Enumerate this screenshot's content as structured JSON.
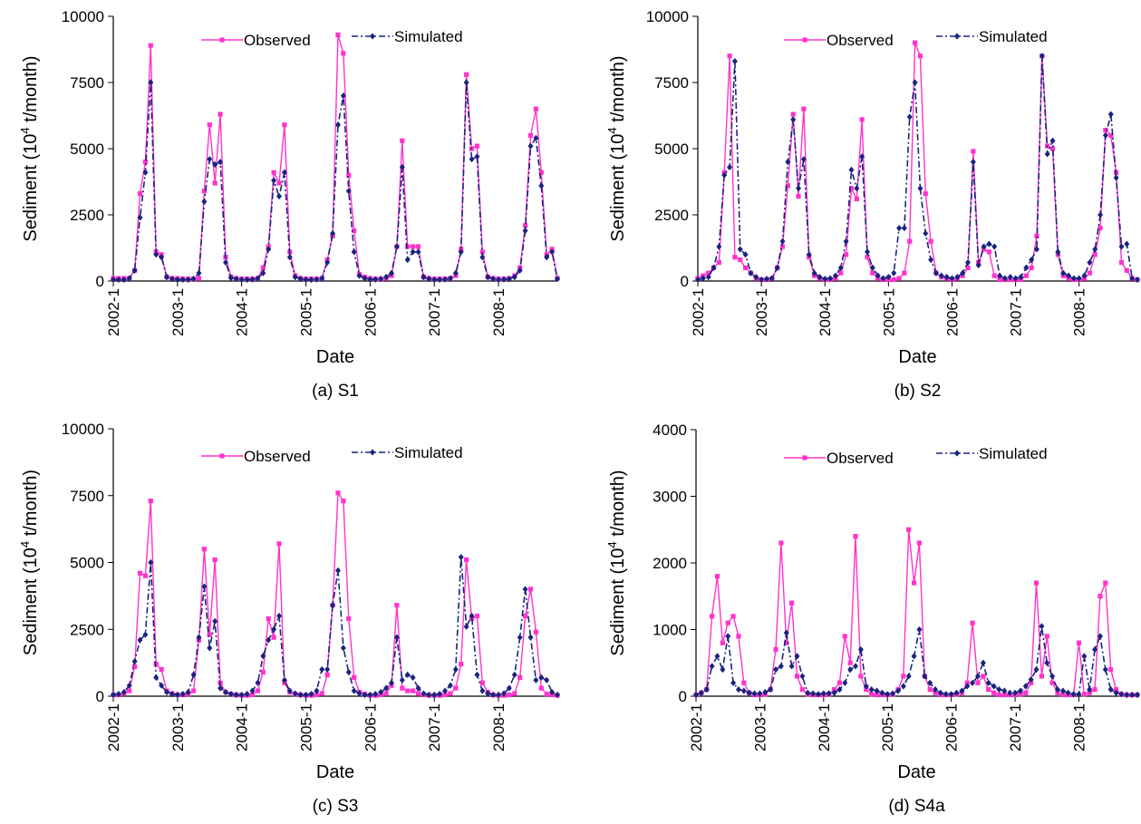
{
  "figure": {
    "x_axis_label": "Date",
    "y_axis_label_prefix": "Sediment (10",
    "y_axis_label_sup": "4",
    "y_axis_label_suffix": " t/month)"
  },
  "chart_data": [
    {
      "type": "line",
      "caption": "(a) S1",
      "xlabel": "Date",
      "ylabel": "Sediment (10^4 t/month)",
      "ylim": [
        0,
        10000
      ],
      "yticks": [
        0,
        2500,
        5000,
        7500,
        10000
      ],
      "xticks": [
        "2002-1",
        "2003-1",
        "2004-1",
        "2005-1",
        "2006-1",
        "2007-1",
        "2008-1"
      ],
      "x_start": "2002-01",
      "grid": false,
      "legend_position": "top-center",
      "series": [
        {
          "name": "Observed",
          "color": "#ff33cc",
          "marker": "square",
          "style": "solid",
          "values": [
            100,
            100,
            100,
            100,
            400,
            3300,
            4500,
            8900,
            1100,
            1000,
            150,
            100,
            100,
            80,
            80,
            80,
            100,
            3400,
            5900,
            3700,
            6300,
            900,
            150,
            100,
            80,
            80,
            80,
            100,
            500,
            1300,
            4100,
            3700,
            5900,
            1100,
            200,
            100,
            80,
            80,
            80,
            100,
            800,
            1700,
            9300,
            8600,
            4000,
            1900,
            250,
            150,
            100,
            80,
            80,
            100,
            200,
            1300,
            5300,
            1300,
            1300,
            1300,
            150,
            100,
            80,
            80,
            80,
            100,
            200,
            1200,
            7800,
            5000,
            5100,
            1100,
            150,
            100,
            80,
            80,
            100,
            200,
            500,
            2100,
            5500,
            6500,
            4100,
            1000,
            1200,
            100
          ]
        },
        {
          "name": "Simulated",
          "color": "#1a237e",
          "marker": "diamond",
          "style": "dashdot",
          "values": [
            50,
            50,
            50,
            100,
            400,
            2400,
            4100,
            7500,
            1000,
            900,
            150,
            80,
            50,
            50,
            50,
            80,
            300,
            3000,
            4600,
            4400,
            4500,
            700,
            120,
            80,
            50,
            50,
            60,
            100,
            300,
            1200,
            3800,
            3200,
            4100,
            900,
            150,
            80,
            50,
            50,
            60,
            100,
            700,
            1800,
            5900,
            7000,
            3400,
            1100,
            200,
            100,
            60,
            60,
            80,
            150,
            300,
            1300,
            4300,
            800,
            1100,
            1100,
            150,
            80,
            50,
            50,
            60,
            100,
            300,
            1100,
            7500,
            4600,
            4700,
            900,
            150,
            80,
            50,
            60,
            80,
            150,
            400,
            1900,
            5100,
            5400,
            3600,
            900,
            1100,
            80
          ]
        }
      ]
    },
    {
      "type": "line",
      "caption": "(b) S2",
      "xlabel": "Date",
      "ylabel": "Sediment (10^4 t/month)",
      "ylim": [
        0,
        10000
      ],
      "yticks": [
        0,
        2500,
        5000,
        7500,
        10000
      ],
      "xticks": [
        "2002-1",
        "2003-1",
        "2004-1",
        "2005-1",
        "2006-1",
        "2007-1",
        "2008-1"
      ],
      "x_start": "2002-01",
      "grid": false,
      "legend_position": "top-center",
      "series": [
        {
          "name": "Observed",
          "color": "#ff33cc",
          "marker": "square",
          "style": "solid",
          "values": [
            100,
            200,
            300,
            500,
            700,
            4100,
            8500,
            900,
            800,
            500,
            300,
            100,
            50,
            50,
            100,
            500,
            1300,
            3600,
            6300,
            3200,
            6500,
            900,
            200,
            100,
            50,
            50,
            100,
            300,
            1000,
            3500,
            3100,
            6100,
            900,
            300,
            100,
            50,
            50,
            50,
            100,
            300,
            1500,
            9000,
            8500,
            3300,
            1500,
            300,
            150,
            100,
            50,
            100,
            200,
            500,
            4900,
            700,
            1200,
            1100,
            200,
            50,
            50,
            50,
            50,
            50,
            200,
            500,
            1700,
            8500,
            5100,
            5000,
            1000,
            200,
            100,
            50,
            50,
            100,
            300,
            1000,
            2000,
            5700,
            5500,
            4100,
            700,
            400,
            100,
            50
          ]
        },
        {
          "name": "Simulated",
          "color": "#1a237e",
          "marker": "diamond",
          "style": "dashdot",
          "values": [
            50,
            100,
            150,
            500,
            1300,
            4000,
            4300,
            8300,
            1200,
            1000,
            300,
            150,
            50,
            80,
            100,
            500,
            1500,
            4500,
            6100,
            3500,
            4600,
            1000,
            300,
            150,
            80,
            100,
            200,
            500,
            1500,
            4200,
            3500,
            4700,
            1100,
            500,
            200,
            100,
            150,
            300,
            2000,
            2000,
            6200,
            7500,
            3500,
            1800,
            800,
            300,
            200,
            150,
            100,
            150,
            300,
            700,
            4500,
            600,
            1300,
            1400,
            1300,
            200,
            100,
            150,
            100,
            150,
            500,
            800,
            1200,
            8500,
            4800,
            5300,
            1100,
            300,
            200,
            100,
            100,
            200,
            700,
            1200,
            2500,
            5500,
            6300,
            3900,
            1300,
            1400,
            100,
            50
          ]
        }
      ]
    },
    {
      "type": "line",
      "caption": "(c) S3",
      "xlabel": "Date",
      "ylabel": "Sediment (10^4 t/month)",
      "ylim": [
        0,
        10000
      ],
      "yticks": [
        0,
        2500,
        5000,
        7500,
        10000
      ],
      "xticks": [
        "2002-1",
        "2003-1",
        "2004-1",
        "2005-1",
        "2006-1",
        "2007-1",
        "2008-1"
      ],
      "x_start": "2002-01",
      "grid": false,
      "legend_position": "top-center",
      "series": [
        {
          "name": "Observed",
          "color": "#ff33cc",
          "marker": "square",
          "style": "solid",
          "values": [
            50,
            50,
            100,
            200,
            1100,
            4600,
            4500,
            7300,
            1200,
            1000,
            200,
            100,
            50,
            50,
            80,
            200,
            2100,
            5500,
            2300,
            5100,
            500,
            150,
            80,
            50,
            30,
            30,
            50,
            200,
            900,
            2900,
            2200,
            5700,
            500,
            150,
            80,
            50,
            30,
            30,
            50,
            100,
            800,
            3400,
            7600,
            7300,
            2900,
            700,
            150,
            80,
            30,
            30,
            50,
            100,
            400,
            3400,
            300,
            200,
            200,
            100,
            50,
            30,
            30,
            30,
            50,
            100,
            300,
            1200,
            5100,
            2900,
            3000,
            500,
            150,
            50,
            30,
            30,
            50,
            100,
            700,
            3000,
            4000,
            2400,
            300,
            80,
            50,
            30
          ]
        },
        {
          "name": "Simulated",
          "color": "#1a237e",
          "marker": "diamond",
          "style": "dashdot",
          "values": [
            50,
            80,
            150,
            400,
            1300,
            2100,
            2300,
            5000,
            700,
            400,
            150,
            80,
            50,
            80,
            150,
            800,
            2200,
            4100,
            1800,
            2800,
            300,
            150,
            80,
            50,
            50,
            80,
            200,
            500,
            1500,
            2100,
            2500,
            3000,
            600,
            200,
            100,
            50,
            50,
            80,
            200,
            1000,
            1000,
            3400,
            4700,
            1800,
            900,
            200,
            100,
            50,
            50,
            80,
            150,
            300,
            500,
            2200,
            600,
            800,
            700,
            300,
            100,
            50,
            50,
            80,
            200,
            400,
            1000,
            5200,
            2600,
            3000,
            800,
            200,
            100,
            50,
            50,
            100,
            300,
            800,
            2200,
            4000,
            2200,
            600,
            700,
            600,
            150,
            50
          ]
        }
      ]
    },
    {
      "type": "line",
      "caption": "(d) S4a",
      "xlabel": "Date",
      "ylabel": "Sediment (10^4 t/month)",
      "ylim": [
        0,
        4000
      ],
      "yticks": [
        0,
        1000,
        2000,
        3000,
        4000
      ],
      "xticks": [
        "2002-1",
        "2003-1",
        "2004-1",
        "2005-1",
        "2006-1",
        "2007-1",
        "2008-1"
      ],
      "x_start": "2002-01",
      "grid": false,
      "legend_position": "top-center",
      "series": [
        {
          "name": "Observed",
          "color": "#ff33cc",
          "marker": "square",
          "style": "solid",
          "values": [
            20,
            50,
            100,
            1200,
            1800,
            800,
            1100,
            1200,
            900,
            200,
            50,
            20,
            20,
            30,
            100,
            700,
            2300,
            800,
            1400,
            300,
            100,
            30,
            20,
            20,
            20,
            30,
            100,
            200,
            900,
            500,
            2400,
            300,
            100,
            30,
            20,
            20,
            20,
            30,
            100,
            300,
            2500,
            1700,
            2300,
            300,
            100,
            50,
            20,
            20,
            20,
            30,
            50,
            200,
            1100,
            200,
            300,
            100,
            50,
            20,
            20,
            20,
            20,
            30,
            50,
            200,
            1700,
            300,
            900,
            200,
            50,
            20,
            20,
            20,
            800,
            30,
            50,
            100,
            1500,
            1700,
            400,
            100,
            30,
            20,
            20,
            20
          ]
        },
        {
          "name": "Simulated",
          "color": "#1a237e",
          "marker": "diamond",
          "style": "dashdot",
          "values": [
            20,
            50,
            100,
            450,
            600,
            400,
            900,
            200,
            100,
            80,
            50,
            40,
            40,
            60,
            100,
            400,
            450,
            950,
            450,
            600,
            300,
            50,
            40,
            30,
            40,
            40,
            50,
            100,
            200,
            400,
            450,
            700,
            150,
            100,
            80,
            50,
            30,
            40,
            80,
            150,
            300,
            600,
            1000,
            300,
            200,
            100,
            50,
            30,
            30,
            50,
            80,
            150,
            200,
            300,
            500,
            200,
            150,
            100,
            80,
            50,
            50,
            80,
            150,
            250,
            400,
            1050,
            500,
            300,
            100,
            80,
            50,
            30,
            30,
            600,
            100,
            700,
            900,
            400,
            100,
            50,
            30,
            20,
            20,
            20
          ]
        }
      ]
    }
  ]
}
